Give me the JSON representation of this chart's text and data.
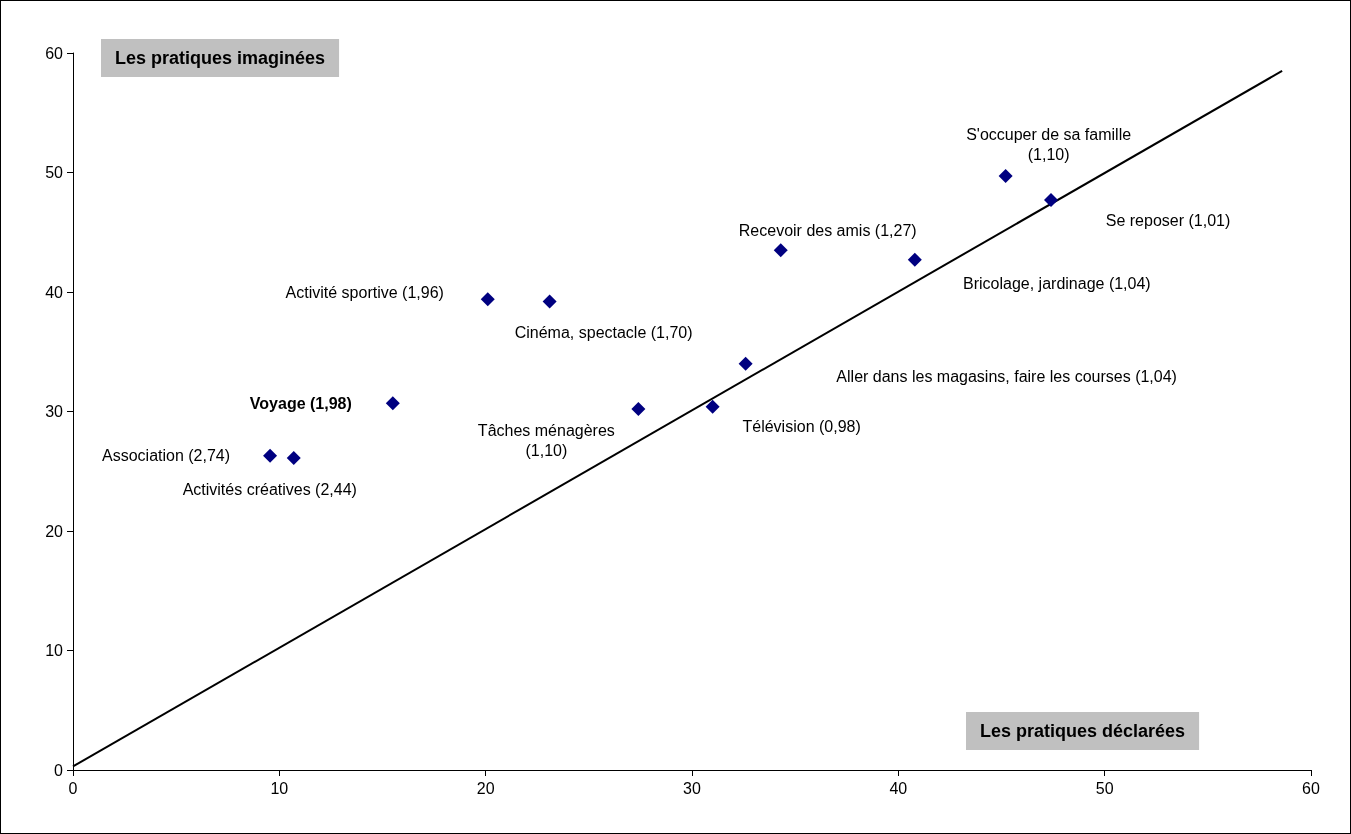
{
  "chart_data": {
    "type": "scatter",
    "xlabel": "Les pratiques déclarées",
    "ylabel": "Les pratiques imaginées",
    "xlim": [
      0,
      60
    ],
    "xticks": [
      0,
      10,
      20,
      30,
      40,
      50,
      60
    ],
    "ylim": [
      0,
      60
    ],
    "yticks": [
      0,
      10,
      20,
      30,
      40,
      50,
      60
    ],
    "grid": false,
    "series": [
      {
        "color": "#000080",
        "marker": "diamond",
        "x": [
          9.55,
          10.7,
          15.5,
          20.1,
          23.1,
          27.4,
          31.0,
          32.6,
          34.3,
          40.8,
          45.2,
          47.4
        ],
        "values": [
          26.3,
          26.1,
          30.7,
          39.4,
          39.2,
          30.2,
          30.4,
          34.0,
          43.5,
          42.7,
          49.7,
          47.7
        ]
      },
      {
        "type": "line",
        "color": "#000000",
        "marker": "none",
        "line_style": "solid",
        "x": [
          0,
          58.6
        ],
        "values": [
          0.3,
          58.5
        ]
      }
    ],
    "annotations": [
      "Association (2,74)",
      "Activités créatives (2,44)",
      "Voyage (1,98)",
      "Activité sportive (1,96)",
      "Cinéma, spectacle (1,70)",
      "Tâches ménagères (1,10)",
      "Télévision (0,98)",
      "Aller dans les magasins, faire les courses (1,04)",
      "Recevoir des amis (1,27)",
      "Bricolage, jardinage (1,04)",
      "S'occuper de sa famille (1,10)",
      "Se reposer (1,01)"
    ]
  }
}
